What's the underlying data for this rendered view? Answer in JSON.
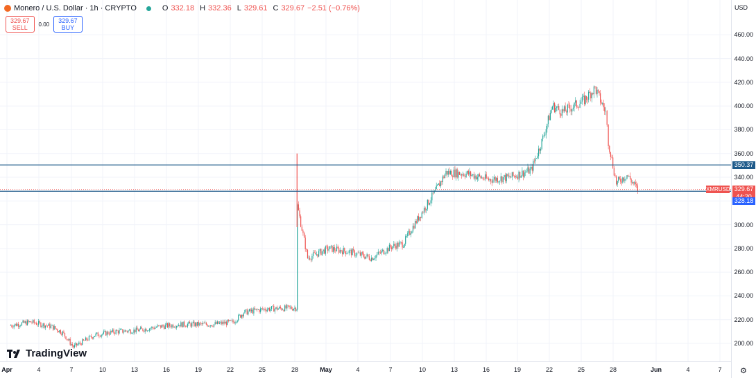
{
  "header": {
    "symbol_title": "Monero / U.S. Dollar · 1h · CRYPTO",
    "open_label": "O",
    "open": "332.18",
    "high_label": "H",
    "high": "332.36",
    "low_label": "L",
    "low": "329.61",
    "close_label": "C",
    "close": "329.67",
    "change": "−2.51 (−0.76%)"
  },
  "trade": {
    "sell_price": "329.67",
    "sell_label": "SELL",
    "spread": "0.00",
    "buy_price": "329.67",
    "buy_label": "BUY"
  },
  "axis": {
    "currency": "USD",
    "symbol_tag": "XMRUSD",
    "last_price": "329.67",
    "countdown": "44:20",
    "line_upper_label": "350.37",
    "line_lower_label": "328.18"
  },
  "brand": {
    "logo_text": "TradingView"
  },
  "colors": {
    "up": "#26a69a",
    "down": "#ef5350",
    "line": "#1e5a8a",
    "tag_blue": "#2962ff",
    "grid": "#f0f3fa"
  },
  "chart_data": {
    "type": "candlestick",
    "title": "Monero / U.S. Dollar · 1h · CRYPTO",
    "ylim": [
      190,
      470
    ],
    "y_ticks": [
      200,
      220,
      240,
      260,
      280,
      300,
      320,
      340,
      360,
      380,
      400,
      420,
      440,
      460
    ],
    "x_ticks": [
      "Apr",
      "4",
      "7",
      "10",
      "13",
      "16",
      "19",
      "22",
      "25",
      "28",
      "May",
      "4",
      "7",
      "10",
      "13",
      "16",
      "19",
      "22",
      "25",
      "28",
      "Jun",
      "4",
      "7"
    ],
    "horizontal_lines": [
      350.37,
      328.18
    ],
    "last_price": 329.67,
    "approx_close_path": [
      {
        "date": "Apr 1",
        "close": 215
      },
      {
        "date": "Apr 3",
        "close": 218
      },
      {
        "date": "Apr 5",
        "close": 214
      },
      {
        "date": "Apr 6",
        "close": 209
      },
      {
        "date": "Apr 7",
        "close": 197
      },
      {
        "date": "Apr 9",
        "close": 207
      },
      {
        "date": "Apr 11",
        "close": 210
      },
      {
        "date": "Apr 13",
        "close": 211
      },
      {
        "date": "Apr 15",
        "close": 214
      },
      {
        "date": "Apr 17",
        "close": 216
      },
      {
        "date": "Apr 20",
        "close": 216
      },
      {
        "date": "Apr 22",
        "close": 218
      },
      {
        "date": "Apr 23",
        "close": 226
      },
      {
        "date": "Apr 25",
        "close": 229
      },
      {
        "date": "Apr 28",
        "close": 230
      },
      {
        "date": "Apr 28 13:00",
        "close": 316
      },
      {
        "date": "Apr 29",
        "close": 272
      },
      {
        "date": "May 1",
        "close": 280
      },
      {
        "date": "May 3",
        "close": 277
      },
      {
        "date": "May 5",
        "close": 272
      },
      {
        "date": "May 7",
        "close": 282
      },
      {
        "date": "May 8",
        "close": 284
      },
      {
        "date": "May 9",
        "close": 300
      },
      {
        "date": "May 11",
        "close": 328
      },
      {
        "date": "May 12",
        "close": 344
      },
      {
        "date": "May 14",
        "close": 343
      },
      {
        "date": "May 16",
        "close": 338
      },
      {
        "date": "May 18",
        "close": 340
      },
      {
        "date": "May 20",
        "close": 346
      },
      {
        "date": "May 21",
        "close": 370
      },
      {
        "date": "May 22",
        "close": 400
      },
      {
        "date": "May 23",
        "close": 395
      },
      {
        "date": "May 25",
        "close": 405
      },
      {
        "date": "May 26",
        "close": 415
      },
      {
        "date": "May 27",
        "close": 395
      },
      {
        "date": "May 27 18:00",
        "close": 370
      },
      {
        "date": "May 28",
        "close": 335
      },
      {
        "date": "May 29",
        "close": 342
      },
      {
        "date": "May 30",
        "close": 329.67
      }
    ]
  }
}
